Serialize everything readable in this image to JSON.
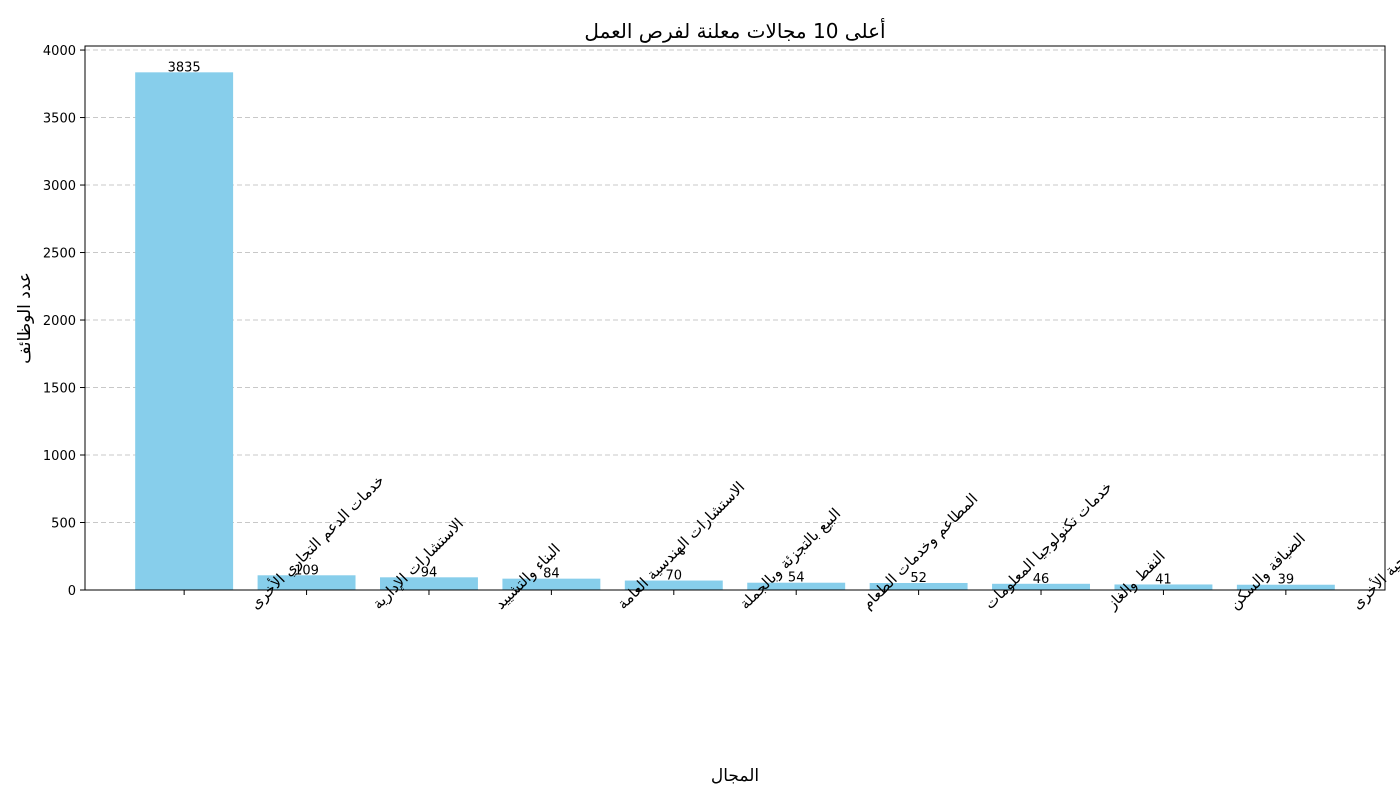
{
  "chart_data": {
    "type": "bar",
    "title": "أعلى 10 مجالات معلنة لفرص العمل",
    "xlabel": "المجال",
    "ylabel": "عدد الوظائف",
    "categories": [
      "خدمات الدعم التجاري الأخرى",
      "الاستشارات الإدارية",
      "البناء والتشييد",
      "الاستشارات الهندسية العامة",
      "البيع بالتجزئة وبالجملة",
      "المطاعم وخدمات الطعام",
      "خدمات تكنولوجيا المعلومات",
      "النفط والغاز",
      "الضيافة والسكن",
      "خدمات الرعاية الصحية الأخرى"
    ],
    "values": [
      3835,
      109,
      94,
      84,
      70,
      54,
      52,
      46,
      41,
      39
    ],
    "ylim": [
      0,
      4030
    ],
    "yticks": [
      0,
      500,
      1000,
      1500,
      2000,
      2500,
      3000,
      3500,
      4000
    ],
    "grid": "y-dashed",
    "bar_color": "#87ceeb",
    "grid_color": "#c8c8c8"
  }
}
